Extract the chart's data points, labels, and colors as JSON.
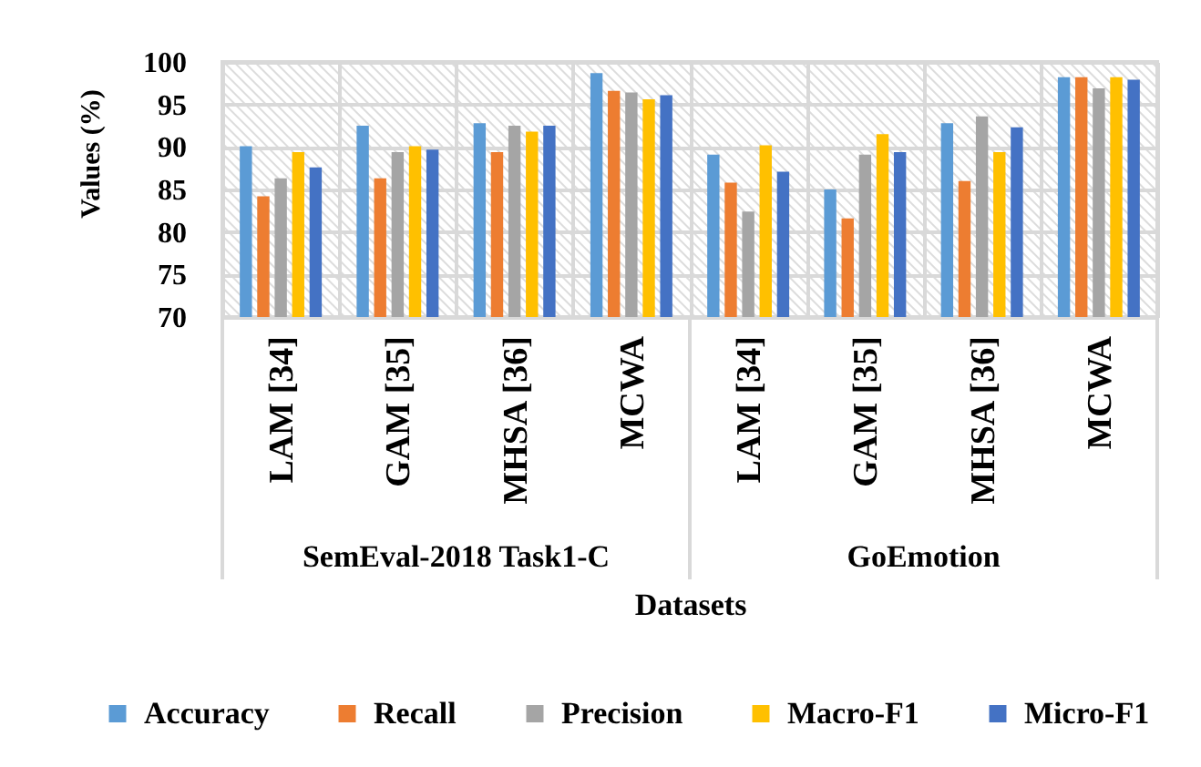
{
  "chart_data": {
    "type": "bar",
    "xlabel": "Datasets",
    "ylabel": "Values (%)",
    "categories": [
      "LAM [34]",
      "GAM [35]",
      "MHSA [36]",
      "MCWA",
      "LAM [34]",
      "GAM [35]",
      "MHSA [36]",
      "MCWA"
    ],
    "annotations": [
      "SemEval-2018 Task1-C",
      "GoEmotion"
    ],
    "series": [
      {
        "name": "Accuracy",
        "color": "#5b9bd5",
        "values": [
          90.1,
          92.5,
          92.8,
          98.7,
          89.1,
          85.0,
          92.8,
          98.2
        ]
      },
      {
        "name": "Recall",
        "color": "#ed7d31",
        "values": [
          84.2,
          86.3,
          89.4,
          96.6,
          85.8,
          81.6,
          86.0,
          98.2
        ]
      },
      {
        "name": "Precision",
        "color": "#a5a5a5",
        "values": [
          86.3,
          89.4,
          92.5,
          96.4,
          82.4,
          89.1,
          93.6,
          96.9
        ]
      },
      {
        "name": "Macro-F1",
        "color": "#ffc000",
        "values": [
          89.4,
          90.1,
          91.8,
          95.6,
          90.2,
          91.5,
          89.4,
          98.2
        ]
      },
      {
        "name": "Micro-F1",
        "color": "#4472c4",
        "values": [
          87.6,
          89.7,
          92.5,
          96.1,
          87.1,
          89.4,
          92.3,
          97.9
        ]
      }
    ],
    "ylim": [
      70,
      100
    ],
    "yticks": [
      70,
      75,
      80,
      85,
      90,
      95,
      100
    ],
    "grid": true,
    "legend": "bottom"
  }
}
